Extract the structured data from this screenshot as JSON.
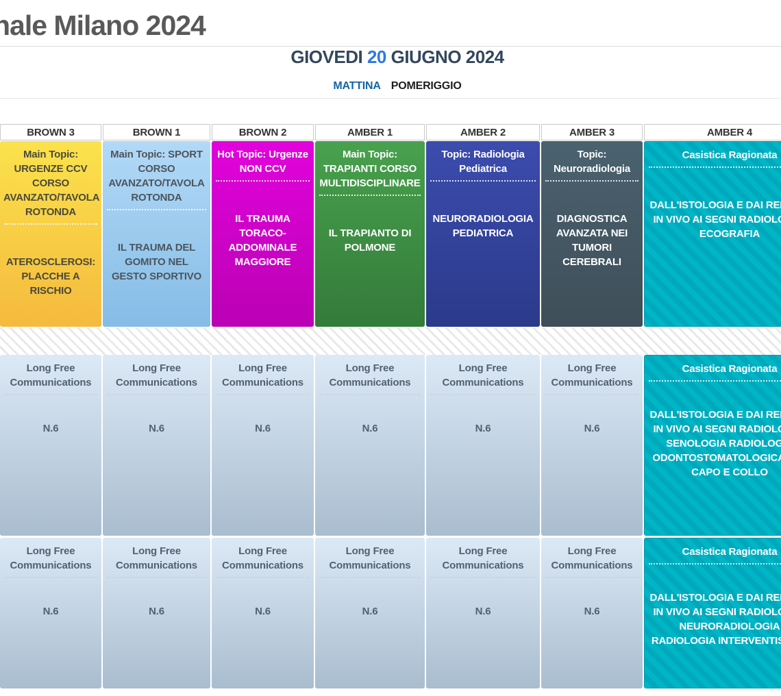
{
  "header": {
    "title": "nale Milano 2024",
    "date": {
      "prefix": "GIOVEDI",
      "day": "20",
      "suffix": "GIUGNO 2024"
    },
    "tabs": [
      {
        "label": "MATTINA",
        "active": true
      },
      {
        "label": "POMERIGGIO",
        "active": false
      }
    ]
  },
  "colors": {
    "accent_blue": "#2b79e0",
    "tab_active": "#1464a5",
    "yellow_card": "#f8cf45",
    "sky_card": "#9ccbf0",
    "magenta_card": "#ce02c8",
    "green_card": "#3e8e44",
    "indigo_card": "#34439c",
    "slate_card": "#455a66",
    "teal_card": "#00afc1",
    "free_card_top": "#dce9f6",
    "free_card_bottom": "#a9bdcf"
  },
  "columns": [
    {
      "room": "BROWN 3",
      "top": {
        "title": "Main Topic: URGENZE CCV CORSO AVANZATO/TAVOLA ROTONDA",
        "body": "ATEROSCLEROSI: PLACCHE A RISCHIO"
      },
      "mid": {
        "title": "Long Free Communications",
        "body": "N.6"
      },
      "bottom": {
        "title": "Long Free Communications",
        "body": "N.6"
      }
    },
    {
      "room": "BROWN 1",
      "top": {
        "title": "Main Topic: SPORT CORSO AVANZATO/TAVOLA ROTONDA",
        "body": "IL TRAUMA DEL GOMITO NEL GESTO SPORTIVO"
      },
      "mid": {
        "title": "Long Free Communications",
        "body": "N.6"
      },
      "bottom": {
        "title": "Long Free Communications",
        "body": "N.6"
      }
    },
    {
      "room": "BROWN 2",
      "top": {
        "title": "Hot Topic: Urgenze NON CCV",
        "body": "IL TRAUMA TORACO-ADDOMINALE MAGGIORE"
      },
      "mid": {
        "title": "Long Free Communications",
        "body": "N.6"
      },
      "bottom": {
        "title": "Long Free Communications",
        "body": "N.6"
      }
    },
    {
      "room": "AMBER 1",
      "top": {
        "title": "Main Topic: TRAPIANTI CORSO MULTIDISCIPLINARE",
        "body": "IL TRAPIANTO DI POLMONE"
      },
      "mid": {
        "title": "Long Free Communications",
        "body": "N.6"
      },
      "bottom": {
        "title": "Long Free Communications",
        "body": "N.6"
      }
    },
    {
      "room": "AMBER 2",
      "top": {
        "title": "Topic: Radiologia Pediatrica",
        "body": "NEURORADIOLOGIA PEDIATRICA"
      },
      "mid": {
        "title": "Long Free Communications",
        "body": "N.6"
      },
      "bottom": {
        "title": "Long Free Communications",
        "body": "N.6"
      }
    },
    {
      "room": "AMBER 3",
      "top": {
        "title": "Topic: Neuroradiologia",
        "body": "DIAGNOSTICA AVANZATA NEI TUMORI CEREBRALI"
      },
      "mid": {
        "title": "Long Free Communications",
        "body": "N.6"
      },
      "bottom": {
        "title": "Long Free Communications",
        "body": "N.6"
      }
    },
    {
      "room": "AMBER 4",
      "top": {
        "title": "Casistica Ragionata",
        "body": "DALL'ISTOLOGIA E DAI REPERTI IN VIVO AI SEGNI RADIOLOGICI ECOGRAFIA"
      },
      "mid": {
        "title": "Casistica Ragionata",
        "body": "DALL'ISTOLOGIA E DAI REPERTI IN VIVO AI SEGNI RADIOLOGICI SENOLOGIA RADIOLOGIA ODONTOSTOMATOLOGICA E DI CAPO E COLLO"
      },
      "bottom": {
        "title": "Casistica Ragionata",
        "body": "DALL'ISTOLOGIA E DAI REPERTI IN VIVO AI SEGNI RADIOLOGICI NEURORADIOLOGIA RADIOLOGIA INTERVENTISTICA"
      }
    }
  ]
}
